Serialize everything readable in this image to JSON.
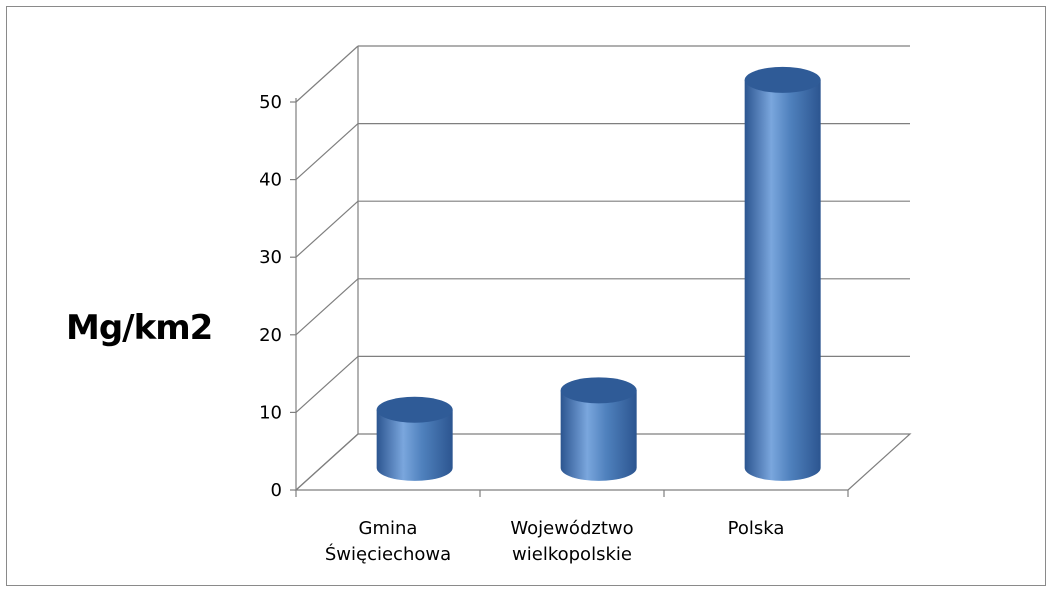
{
  "chart_data": {
    "type": "bar",
    "categories": [
      "Gmina\nŚwięciechowa",
      "Województwo\nwielkopolskie",
      "Polska"
    ],
    "values": [
      7.5,
      10,
      50
    ],
    "ylabel": "Mg/km2",
    "yticks": [
      0,
      10,
      20,
      30,
      40,
      50
    ],
    "ylim": [
      0,
      50
    ],
    "grid": true,
    "style": "3d-cylinder",
    "colors": {
      "bar": "#4f81bd",
      "bar_dark": "#2c5590",
      "bar_light": "#7aa6dd",
      "grid": "#7f7f7f"
    }
  }
}
